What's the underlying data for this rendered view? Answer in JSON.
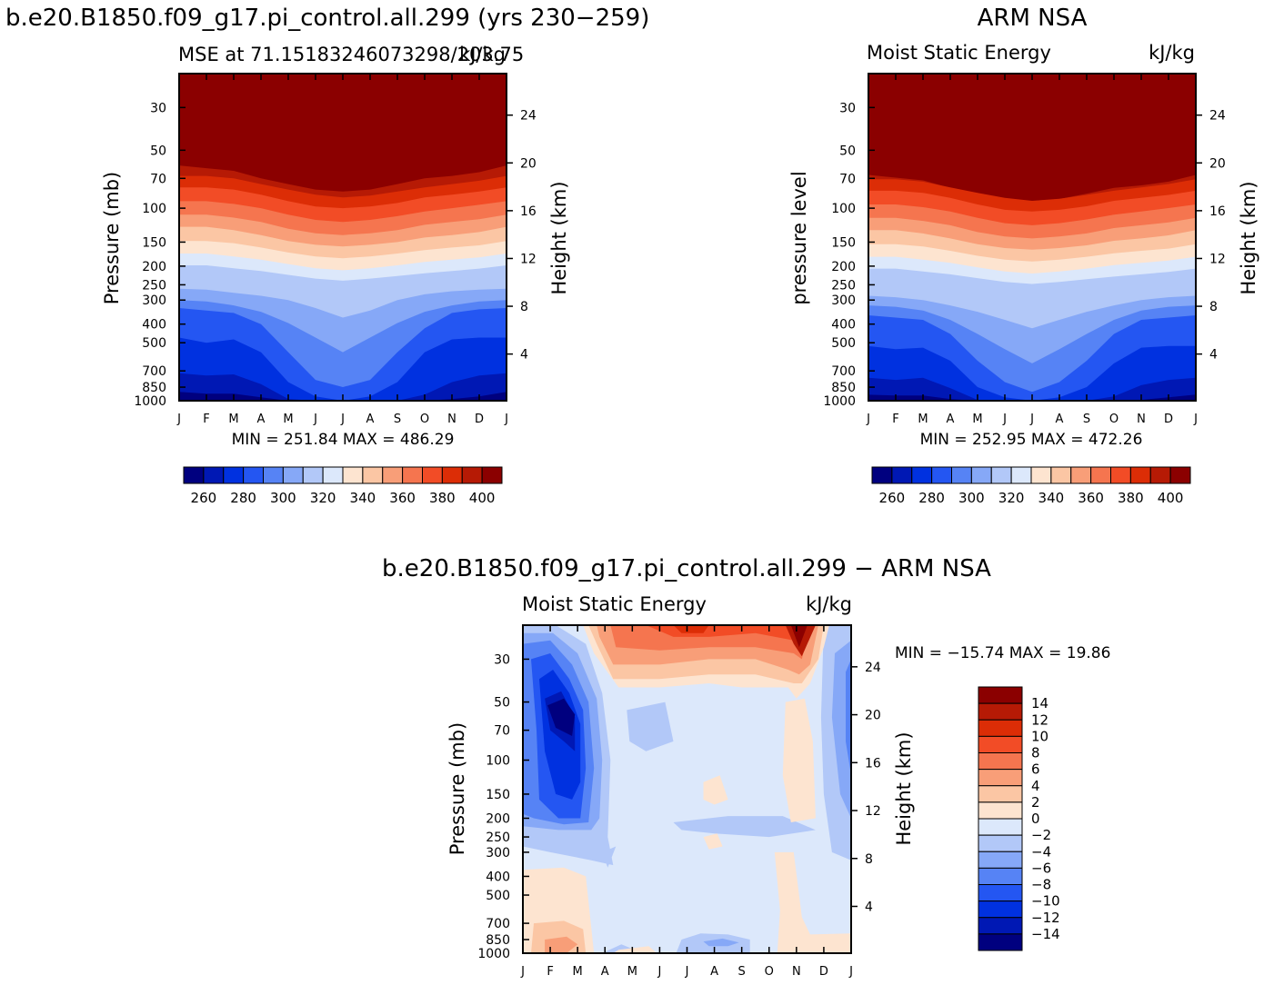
{
  "page": {
    "run_title": "b.e20.B1850.f09_g17.pi_control.all.299 (yrs 230−259)",
    "obs_title": "ARM NSA",
    "diff_title": "b.e20.B1850.f09_g17.pi_control.all.299 − ARM NSA"
  },
  "colors": {
    "mse_levels": [
      "#00007f",
      "#0018b4",
      "#0031e0",
      "#2456f2",
      "#5683f5",
      "#86a8f7",
      "#b2c8f8",
      "#dce8fb",
      "#fde4d0",
      "#fbc6a4",
      "#f89e78",
      "#f5754f",
      "#f24c26",
      "#dc2d06",
      "#b61a05",
      "#8b0000"
    ],
    "diff_levels": [
      "#00007f",
      "#0018b4",
      "#0031e0",
      "#2456f2",
      "#5683f5",
      "#86a8f7",
      "#b2c8f8",
      "#dce8fb",
      "#fde4d0",
      "#fbc6a4",
      "#f89e78",
      "#f5754f",
      "#f24c26",
      "#dc2d06",
      "#b61a05",
      "#8b0000"
    ]
  },
  "chart_data": [
    {
      "id": "model",
      "type": "heatmap",
      "title_left": "MSE at 71.15183246073298/203.75",
      "title_right": "kJ/kg",
      "ylabel": "Pressure (mb)",
      "ylabel_right": "Height (km)",
      "xticks": [
        "J",
        "F",
        "M",
        "A",
        "M",
        "J",
        "J",
        "A",
        "S",
        "O",
        "N",
        "D",
        "J"
      ],
      "yticks": [
        "30",
        "50",
        "70",
        "100",
        "150",
        "200",
        "250",
        "300",
        "400",
        "500",
        "700",
        "850",
        "1000"
      ],
      "yticks_right": [
        "24",
        "20",
        "16",
        "12",
        "8",
        "4"
      ],
      "min_max": "MIN = 251.84 MAX = 486.29",
      "colorbar_labels": [
        "260",
        "280",
        "300",
        "320",
        "340",
        "360",
        "380",
        "400"
      ],
      "levels": [
        255,
        260,
        265,
        270,
        275,
        280,
        285,
        290,
        295,
        300,
        305,
        310,
        315,
        320,
        325,
        330,
        335,
        340,
        345,
        350,
        355,
        360,
        365,
        370,
        375,
        380,
        385,
        390,
        395,
        400,
        405
      ],
      "tropopause_hPa": [
        60,
        62,
        64,
        70,
        75,
        80,
        82,
        80,
        75,
        70,
        68,
        65,
        60
      ],
      "layer_boundaries_hPa": [
        [
          68,
          78,
          92,
          108,
          125,
          148,
          172,
          198,
          225
        ],
        [
          68,
          78,
          92,
          108,
          125,
          148,
          172,
          198,
          225
        ],
        [
          70,
          80,
          95,
          112,
          130,
          152,
          178,
          205,
          232
        ],
        [
          75,
          85,
          100,
          118,
          138,
          160,
          185,
          212,
          240
        ],
        [
          80,
          92,
          108,
          128,
          148,
          170,
          195,
          222,
          250
        ],
        [
          85,
          98,
          115,
          135,
          155,
          178,
          205,
          232,
          262
        ],
        [
          88,
          100,
          118,
          138,
          158,
          182,
          210,
          238,
          268
        ],
        [
          86,
          98,
          115,
          135,
          155,
          178,
          205,
          232,
          262
        ],
        [
          82,
          94,
          110,
          130,
          150,
          172,
          198,
          225,
          255
        ],
        [
          78,
          88,
          104,
          122,
          142,
          165,
          190,
          218,
          245
        ],
        [
          75,
          85,
          100,
          118,
          138,
          160,
          185,
          212,
          240
        ],
        [
          72,
          82,
          96,
          114,
          133,
          156,
          180,
          206,
          235
        ],
        [
          68,
          78,
          92,
          108,
          125,
          148,
          172,
          198,
          225
        ]
      ]
    },
    {
      "id": "obs",
      "type": "heatmap",
      "title_left": "Moist Static Energy",
      "title_right": "kJ/kg",
      "ylabel": "pressure level",
      "ylabel_right": "Height (km)",
      "xticks": [
        "J",
        "F",
        "M",
        "A",
        "M",
        "J",
        "J",
        "A",
        "S",
        "O",
        "N",
        "D",
        "J"
      ],
      "yticks": [
        "30",
        "50",
        "70",
        "100",
        "150",
        "200",
        "250",
        "300",
        "400",
        "500",
        "700",
        "850",
        "1000"
      ],
      "yticks_right": [
        "24",
        "20",
        "16",
        "12",
        "8",
        "4"
      ],
      "min_max": "MIN = 252.95 MAX = 472.26",
      "colorbar_labels": [
        "260",
        "280",
        "300",
        "320",
        "340",
        "360",
        "380",
        "400"
      ]
    },
    {
      "id": "diff",
      "type": "heatmap",
      "title_left": "Moist Static Energy",
      "title_right": "kJ/kg",
      "ylabel": "Pressure (mb)",
      "ylabel_right": "Height (km)",
      "xticks": [
        "J",
        "F",
        "M",
        "A",
        "M",
        "J",
        "J",
        "A",
        "S",
        "O",
        "N",
        "D",
        "J"
      ],
      "yticks": [
        "30",
        "50",
        "70",
        "100",
        "150",
        "200",
        "250",
        "300",
        "400",
        "500",
        "700",
        "850",
        "1000"
      ],
      "yticks_right": [
        "24",
        "20",
        "16",
        "12",
        "8",
        "4"
      ],
      "min_max": "MIN = −15.74 MAX =   19.86",
      "colorbar_labels": [
        "14",
        "12",
        "10",
        "8",
        "6",
        "4",
        "2",
        "0",
        "−2",
        "−4",
        "−6",
        "−8",
        "−10",
        "−12",
        "−14"
      ]
    }
  ]
}
